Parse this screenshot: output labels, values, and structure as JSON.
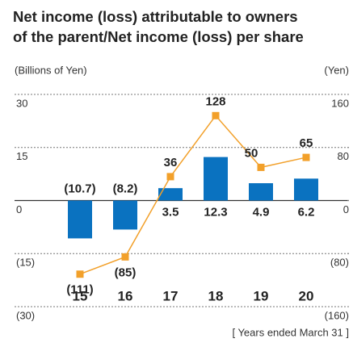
{
  "chart_data": {
    "type": "bar_line",
    "title": [
      "Net income (loss) attributable to owners",
      "of the parent/Net income (loss) per share"
    ],
    "y_label": "(Billions of Yen)",
    "y2_label": "(Yen)",
    "x_note": "[ Years ended March 31 ]",
    "categories": [
      "15",
      "16",
      "17",
      "18",
      "19",
      "20"
    ],
    "series": [
      {
        "type": "bar",
        "color": "#0a72c0",
        "values": [
          -10.7,
          -8.2,
          3.5,
          12.3,
          4.9,
          6.2
        ],
        "value_labels": [
          "(10.7)",
          "(8.2)",
          "3.5",
          "12.3",
          "4.9",
          "6.2"
        ]
      },
      {
        "type": "line",
        "axis": "y2",
        "color": "#f2a02a",
        "values": [
          -111,
          -85,
          36,
          128,
          50,
          65
        ],
        "value_labels": [
          "(111)",
          "(85)",
          "36",
          "128",
          "50",
          "65"
        ]
      }
    ],
    "ylim": [
      -30,
      30
    ],
    "yticks": [
      {
        "value": -30,
        "label": "(30)"
      },
      {
        "value": -15,
        "label": "(15)"
      },
      0,
      15,
      30
    ],
    "y2lim": [
      -160,
      160
    ],
    "y2ticks": [
      {
        "value": -160,
        "label": "(160)"
      },
      {
        "value": -80,
        "label": "(80)"
      },
      0,
      80,
      160
    ],
    "grid": true
  }
}
